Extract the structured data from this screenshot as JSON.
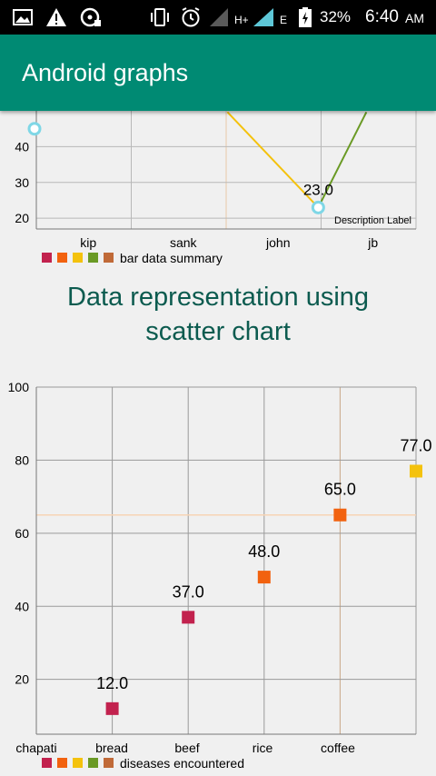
{
  "status_bar": {
    "battery": "32%",
    "time": "6:40",
    "ampm": "AM",
    "network": "H+",
    "network2": "E"
  },
  "app_bar": {
    "title": "Android graphs"
  },
  "bar_chart_section": {
    "description_label": "Description Label",
    "legend_label": "bar data summary"
  },
  "scatter_section": {
    "title_line1": "Data representation using",
    "title_line2": "scatter chart",
    "legend_label": "diseases encountered"
  },
  "colors": {
    "app_bar": "#008a73",
    "c1": "#c2224e",
    "c2": "#f2620f",
    "c3": "#f4c20d",
    "c4": "#6a9a25",
    "c5": "#c06a38"
  },
  "chart_data": [
    {
      "type": "line",
      "categories": [
        "kip",
        "sank",
        "john",
        "jb"
      ],
      "y_ticks": [
        "20",
        "30",
        "40"
      ],
      "ylim": [
        17,
        50
      ],
      "visible_points": [
        {
          "x": "kip",
          "y": 45
        },
        {
          "x": "jb",
          "y": 23.0,
          "label": "23.0"
        }
      ],
      "legend": "bar data summary",
      "description": "Description Label",
      "grid": true
    },
    {
      "type": "scatter",
      "categories": [
        "chapati",
        "bread",
        "beef",
        "rice",
        "coffee"
      ],
      "y_ticks": [
        "20",
        "40",
        "60",
        "80",
        "100"
      ],
      "ylim": [
        5,
        100
      ],
      "points": [
        {
          "x_index": 1,
          "y": 12.0,
          "label": "12.0",
          "color": "#c2224e"
        },
        {
          "x_index": 2,
          "y": 37.0,
          "label": "37.0",
          "color": "#c2224e"
        },
        {
          "x_index": 3,
          "y": 48.0,
          "label": "48.0",
          "color": "#f2620f"
        },
        {
          "x_index": 4,
          "y": 65.0,
          "label": "65.0",
          "color": "#f2620f"
        },
        {
          "x_index": 5,
          "y": 77.0,
          "label": "77.0",
          "color": "#f4c20d"
        }
      ],
      "highlight": {
        "x_index": 4,
        "y": 65.0
      },
      "legend": "diseases encountered",
      "grid": true
    }
  ]
}
